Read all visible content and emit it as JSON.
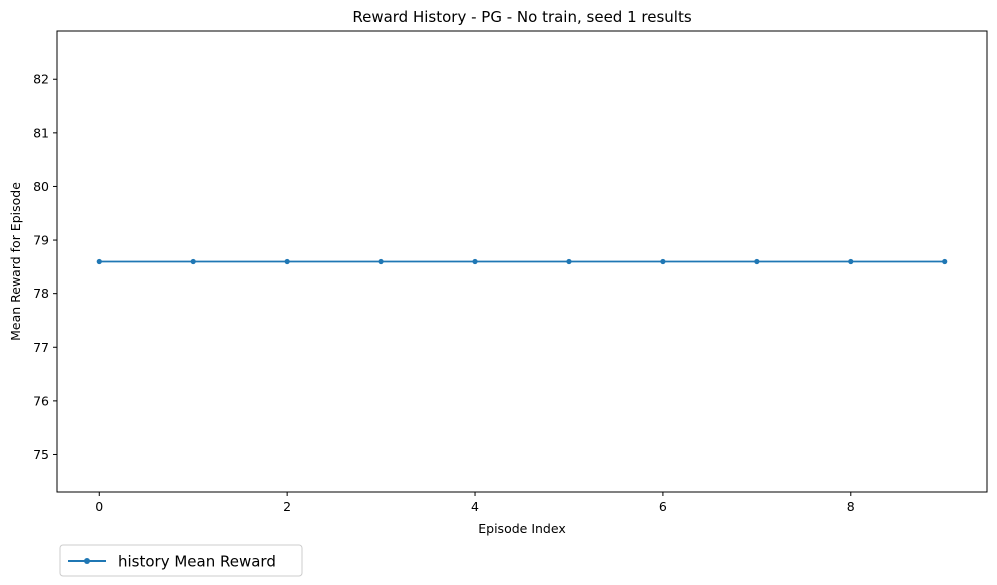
{
  "chart_data": {
    "type": "line",
    "title": "Reward History - PG - No train, seed 1 results",
    "xlabel": "Episode Index",
    "ylabel": "Mean Reward for Episode",
    "xlim": [
      -0.45,
      9.45
    ],
    "ylim": [
      74.3,
      82.9
    ],
    "x_ticks": [
      0,
      2,
      4,
      6,
      8
    ],
    "y_ticks": [
      75,
      76,
      77,
      78,
      79,
      80,
      81,
      82
    ],
    "grid": false,
    "legend_position": "below-left",
    "series": [
      {
        "name": "history Mean Reward",
        "color": "#1f77b4",
        "marker": "circle",
        "x": [
          0,
          1,
          2,
          3,
          4,
          5,
          6,
          7,
          8,
          9
        ],
        "y": [
          78.6,
          78.6,
          78.6,
          78.6,
          78.6,
          78.6,
          78.6,
          78.6,
          78.6,
          78.6
        ]
      }
    ]
  }
}
